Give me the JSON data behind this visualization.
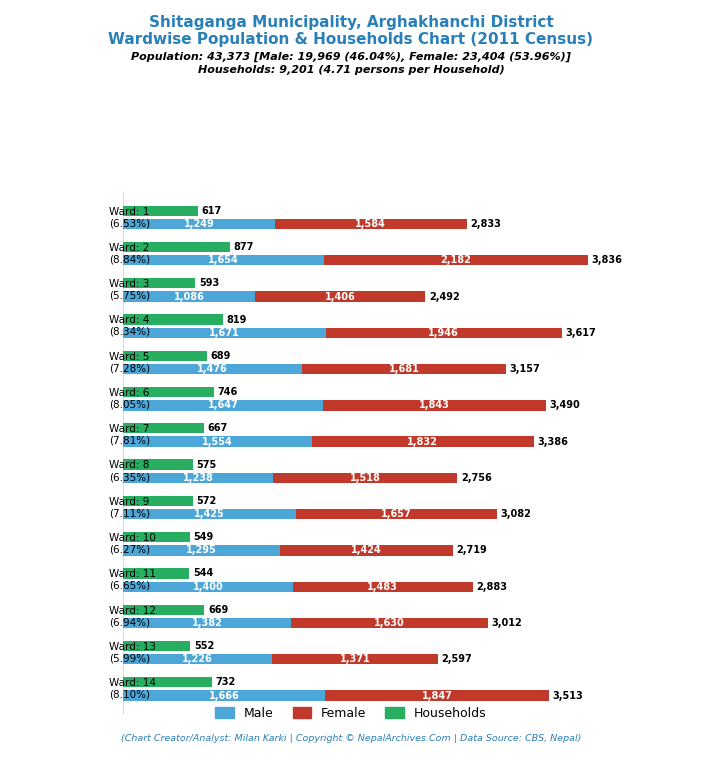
{
  "title_line1": "Shitaganga Municipality, Arghakhanchi District",
  "title_line2": "Wardwise Population & Households Chart (2011 Census)",
  "subtitle1": "Population: 43,373 [Male: 19,969 (46.04%), Female: 23,404 (53.96%)]",
  "subtitle2": "Households: 9,201 (4.71 persons per Household)",
  "footer": "(Chart Creator/Analyst: Milan Karki | Copyright © NepalArchives.Com | Data Source: CBS, Nepal)",
  "wards": [
    {
      "label": "Ward: 1\n(6.53%)",
      "households": 617,
      "male": 1249,
      "female": 1584,
      "total": 2833
    },
    {
      "label": "Ward: 2\n(8.84%)",
      "households": 877,
      "male": 1654,
      "female": 2182,
      "total": 3836
    },
    {
      "label": "Ward: 3\n(5.75%)",
      "households": 593,
      "male": 1086,
      "female": 1406,
      "total": 2492
    },
    {
      "label": "Ward: 4\n(8.34%)",
      "households": 819,
      "male": 1671,
      "female": 1946,
      "total": 3617
    },
    {
      "label": "Ward: 5\n(7.28%)",
      "households": 689,
      "male": 1476,
      "female": 1681,
      "total": 3157
    },
    {
      "label": "Ward: 6\n(8.05%)",
      "households": 746,
      "male": 1647,
      "female": 1843,
      "total": 3490
    },
    {
      "label": "Ward: 7\n(7.81%)",
      "households": 667,
      "male": 1554,
      "female": 1832,
      "total": 3386
    },
    {
      "label": "Ward: 8\n(6.35%)",
      "households": 575,
      "male": 1238,
      "female": 1518,
      "total": 2756
    },
    {
      "label": "Ward: 9\n(7.11%)",
      "households": 572,
      "male": 1425,
      "female": 1657,
      "total": 3082
    },
    {
      "label": "Ward: 10\n(6.27%)",
      "households": 549,
      "male": 1295,
      "female": 1424,
      "total": 2719
    },
    {
      "label": "Ward: 11\n(6.65%)",
      "households": 544,
      "male": 1400,
      "female": 1483,
      "total": 2883
    },
    {
      "label": "Ward: 12\n(6.94%)",
      "households": 669,
      "male": 1382,
      "female": 1630,
      "total": 3012
    },
    {
      "label": "Ward: 13\n(5.99%)",
      "households": 552,
      "male": 1226,
      "female": 1371,
      "total": 2597
    },
    {
      "label": "Ward: 14\n(8.10%)",
      "households": 732,
      "male": 1666,
      "female": 1847,
      "total": 3513
    }
  ],
  "color_male": "#4da6d8",
  "color_female": "#c0392b",
  "color_households": "#27ae60",
  "title_color": "#2980b9",
  "background_color": "#ffffff"
}
